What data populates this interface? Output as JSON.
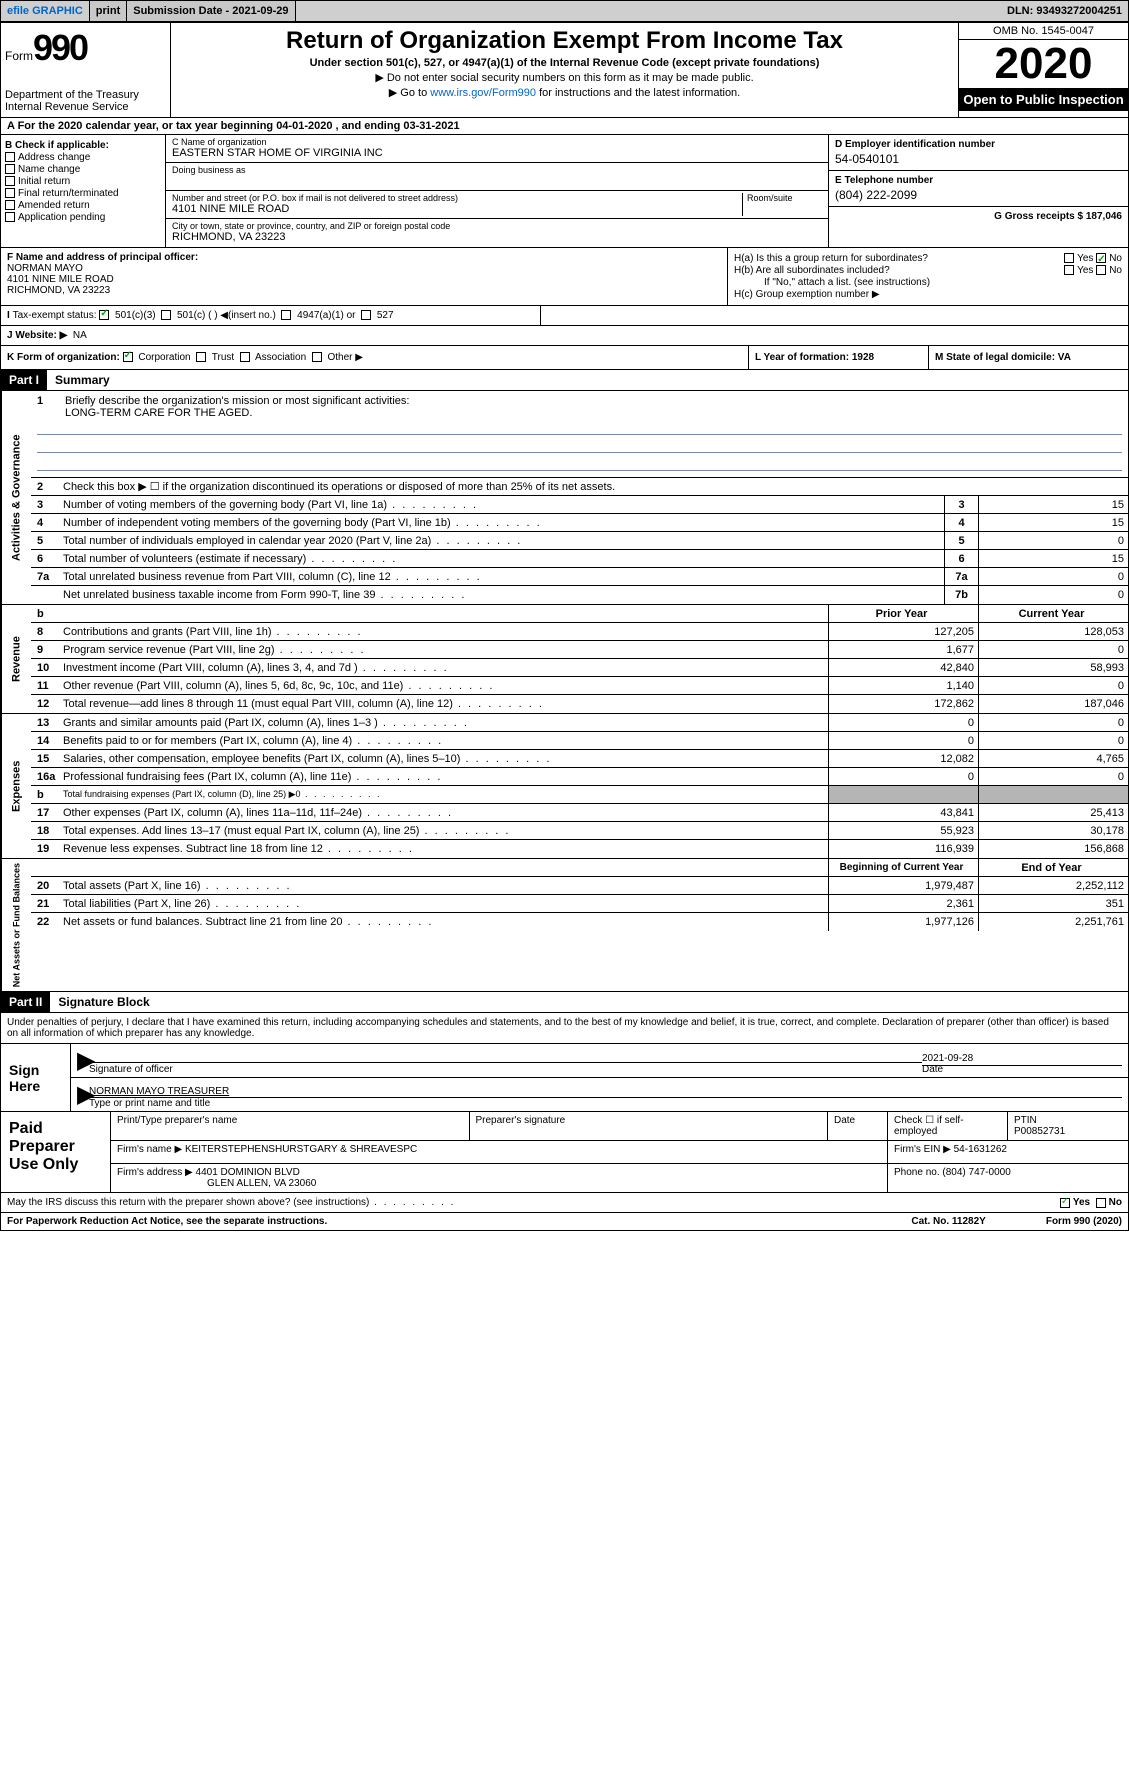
{
  "topbar": {
    "efile": "efile GRAPHIC",
    "print": "print",
    "subdate_lbl": "Submission Date - 2021-09-29",
    "dln": "DLN: 93493272004251"
  },
  "header": {
    "form_prefix": "Form",
    "form_number": "990",
    "dept": "Department of the Treasury\nInternal Revenue Service",
    "title": "Return of Organization Exempt From Income Tax",
    "sub": "Under section 501(c), 527, or 4947(a)(1) of the Internal Revenue Code (except private foundations)",
    "note1": "▶ Do not enter social security numbers on this form as it may be made public.",
    "goto_pre": "▶ Go to ",
    "goto_link": "www.irs.gov/Form990",
    "goto_post": " for instructions and the latest information.",
    "omb": "OMB No. 1545-0047",
    "year": "2020",
    "opentop": "Open to Public Inspection"
  },
  "calyear": "A For the 2020 calendar year, or tax year beginning 04-01-2020    , and ending 03-31-2021",
  "colB": {
    "hdr": "B Check if applicable:",
    "items": [
      "Address change",
      "Name change",
      "Initial return",
      "Final return/terminated",
      "Amended return",
      "Application pending"
    ]
  },
  "colC": {
    "name_lbl": "C Name of organization",
    "name": "EASTERN STAR HOME OF VIRGINIA INC",
    "dba_lbl": "Doing business as",
    "dba": "",
    "addr_lbl": "Number and street (or P.O. box if mail is not delivered to street address)",
    "room_lbl": "Room/suite",
    "addr": "4101 NINE MILE ROAD",
    "city_lbl": "City or town, state or province, country, and ZIP or foreign postal code",
    "city": "RICHMOND, VA  23223"
  },
  "colD": {
    "ein_lbl": "D Employer identification number",
    "ein": "54-0540101",
    "tel_lbl": "E Telephone number",
    "tel": "(804) 222-2099",
    "gross_lbl": "G Gross receipts $ 187,046"
  },
  "secF": {
    "lbl": "F Name and address of principal officer:",
    "name": "NORMAN MAYO",
    "addr1": "4101 NINE MILE ROAD",
    "addr2": "RICHMOND, VA  23223"
  },
  "secH": {
    "ha": "H(a)  Is this a group return for subordinates?",
    "hb": "H(b)  Are all subordinates included?",
    "hb_note": "If \"No,\" attach a list. (see instructions)",
    "hc": "H(c)  Group exemption number ▶"
  },
  "secI": {
    "lbl": "Tax-exempt status:",
    "opt1": "501(c)(3)",
    "opt2": "501(c) (  ) ◀(insert no.)",
    "opt3": "4947(a)(1) or",
    "opt4": "527"
  },
  "secJ": {
    "lbl": "J   Website: ▶",
    "val": "NA"
  },
  "secK": {
    "lbl": "K Form of organization:",
    "corp": "Corporation",
    "trust": "Trust",
    "assoc": "Association",
    "other": "Other ▶"
  },
  "secL": {
    "lbl": "L Year of formation: 1928"
  },
  "secM": {
    "lbl": "M State of legal domicile: VA"
  },
  "part1": {
    "hdr": "Part I",
    "title": "Summary",
    "q1": "Briefly describe the organization's mission or most significant activities:",
    "mission": "LONG-TERM CARE FOR THE AGED.",
    "q2": "Check this box ▶ ☐  if the organization discontinued its operations or disposed of more than 25% of its net assets.",
    "lines_gov": [
      {
        "n": "3",
        "d": "Number of voting members of the governing body (Part VI, line 1a)",
        "box": "3",
        "v": "15"
      },
      {
        "n": "4",
        "d": "Number of independent voting members of the governing body (Part VI, line 1b)",
        "box": "4",
        "v": "15"
      },
      {
        "n": "5",
        "d": "Total number of individuals employed in calendar year 2020 (Part V, line 2a)",
        "box": "5",
        "v": "0"
      },
      {
        "n": "6",
        "d": "Total number of volunteers (estimate if necessary)",
        "box": "6",
        "v": "15"
      },
      {
        "n": "7a",
        "d": "Total unrelated business revenue from Part VIII, column (C), line 12",
        "box": "7a",
        "v": "0"
      },
      {
        "n": "",
        "d": "Net unrelated business taxable income from Form 990-T, line 39",
        "box": "7b",
        "v": "0"
      }
    ],
    "hdr_prior": "Prior Year",
    "hdr_curr": "Current Year",
    "lines_rev": [
      {
        "n": "8",
        "d": "Contributions and grants (Part VIII, line 1h)",
        "p": "127,205",
        "c": "128,053"
      },
      {
        "n": "9",
        "d": "Program service revenue (Part VIII, line 2g)",
        "p": "1,677",
        "c": "0"
      },
      {
        "n": "10",
        "d": "Investment income (Part VIII, column (A), lines 3, 4, and 7d )",
        "p": "42,840",
        "c": "58,993"
      },
      {
        "n": "11",
        "d": "Other revenue (Part VIII, column (A), lines 5, 6d, 8c, 9c, 10c, and 11e)",
        "p": "1,140",
        "c": "0"
      },
      {
        "n": "12",
        "d": "Total revenue—add lines 8 through 11 (must equal Part VIII, column (A), line 12)",
        "p": "172,862",
        "c": "187,046"
      }
    ],
    "lines_exp": [
      {
        "n": "13",
        "d": "Grants and similar amounts paid (Part IX, column (A), lines 1–3 )",
        "p": "0",
        "c": "0"
      },
      {
        "n": "14",
        "d": "Benefits paid to or for members (Part IX, column (A), line 4)",
        "p": "0",
        "c": "0"
      },
      {
        "n": "15",
        "d": "Salaries, other compensation, employee benefits (Part IX, column (A), lines 5–10)",
        "p": "12,082",
        "c": "4,765"
      },
      {
        "n": "16a",
        "d": "Professional fundraising fees (Part IX, column (A), line 11e)",
        "p": "0",
        "c": "0"
      },
      {
        "n": "b",
        "d": "Total fundraising expenses (Part IX, column (D), line 25) ▶0",
        "p": "",
        "c": "",
        "grey": true
      },
      {
        "n": "17",
        "d": "Other expenses (Part IX, column (A), lines 11a–11d, 11f–24e)",
        "p": "43,841",
        "c": "25,413"
      },
      {
        "n": "18",
        "d": "Total expenses. Add lines 13–17 (must equal Part IX, column (A), line 25)",
        "p": "55,923",
        "c": "30,178"
      },
      {
        "n": "19",
        "d": "Revenue less expenses. Subtract line 18 from line 12",
        "p": "116,939",
        "c": "156,868"
      }
    ],
    "hdr_beg": "Beginning of Current Year",
    "hdr_end": "End of Year",
    "lines_net": [
      {
        "n": "20",
        "d": "Total assets (Part X, line 16)",
        "p": "1,979,487",
        "c": "2,252,112"
      },
      {
        "n": "21",
        "d": "Total liabilities (Part X, line 26)",
        "p": "2,361",
        "c": "351"
      },
      {
        "n": "22",
        "d": "Net assets or fund balances. Subtract line 21 from line 20",
        "p": "1,977,126",
        "c": "2,251,761"
      }
    ]
  },
  "part2": {
    "hdr": "Part II",
    "title": "Signature Block",
    "perjury": "Under penalties of perjury, I declare that I have examined this return, including accompanying schedules and statements, and to the best of my knowledge and belief, it is true, correct, and complete. Declaration of preparer (other than officer) is based on all information of which preparer has any knowledge."
  },
  "sign": {
    "here": "Sign Here",
    "sig_officer": "Signature of officer",
    "date": "2021-09-28",
    "date_lbl": "Date",
    "name": "NORMAN MAYO  TREASURER",
    "name_lbl": "Type or print name and title"
  },
  "paid": {
    "lbl": "Paid Preparer Use Only",
    "pt_name_lbl": "Print/Type preparer's name",
    "pt_sig_lbl": "Preparer's signature",
    "pt_date_lbl": "Date",
    "pt_check_lbl": "Check ☐ if self-employed",
    "ptin_lbl": "PTIN",
    "ptin": "P00852731",
    "firm_name_lbl": "Firm's name    ▶",
    "firm_name": "KEITERSTEPHENSHURSTGARY & SHREAVESPC",
    "firm_ein_lbl": "Firm's EIN ▶",
    "firm_ein": "54-1631262",
    "firm_addr_lbl": "Firm's address ▶",
    "firm_addr1": "4401 DOMINION BLVD",
    "firm_addr2": "GLEN ALLEN, VA  23060",
    "phone_lbl": "Phone no.",
    "phone": "(804) 747-0000"
  },
  "discuss": "May the IRS discuss this return with the preparer shown above? (see instructions)",
  "bottom": {
    "paperwork": "For Paperwork Reduction Act Notice, see the separate instructions.",
    "cat": "Cat. No. 11282Y",
    "formver": "Form 990 (2020)"
  },
  "labels": {
    "vert_gov": "Activities & Governance",
    "vert_rev": "Revenue",
    "vert_exp": "Expenses",
    "vert_net": "Net Assets or Fund Balances",
    "yes": "Yes",
    "no": "No"
  }
}
